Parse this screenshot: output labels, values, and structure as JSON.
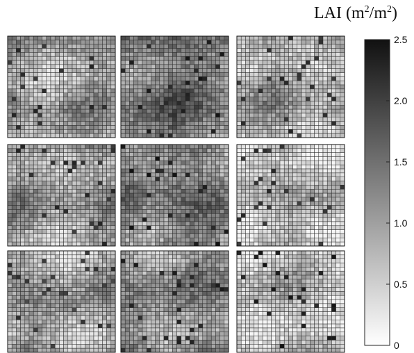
{
  "chart_data": {
    "type": "heatmap",
    "title": {
      "prefix": "LAI (m",
      "sup1": "2",
      "middle": "/m",
      "sup2": "2",
      "suffix": ")"
    },
    "colorbar": {
      "min": 0,
      "max": 2.5,
      "ticks": [
        "2.5",
        "2.0",
        "1.5",
        "1.0",
        "0.5",
        "0"
      ],
      "tick_values": [
        2.5,
        2.0,
        1.5,
        1.0,
        0.5,
        0
      ],
      "color_low": "#ffffff",
      "color_high": "#111111"
    },
    "panel_layout": {
      "rows": 3,
      "cols": 3
    },
    "grid_cells_per_side": 25,
    "panels": [
      {
        "name": "panel-1",
        "mean_lai": 0.85,
        "range": [
          0.2,
          2.3
        ]
      },
      {
        "name": "panel-2",
        "mean_lai": 1.35,
        "range": [
          0.3,
          2.5
        ]
      },
      {
        "name": "panel-3",
        "mean_lai": 0.75,
        "range": [
          0.2,
          2.3
        ]
      },
      {
        "name": "panel-4",
        "mean_lai": 0.9,
        "range": [
          0.2,
          2.3
        ]
      },
      {
        "name": "panel-5",
        "mean_lai": 1.25,
        "range": [
          0.3,
          2.5
        ]
      },
      {
        "name": "panel-6",
        "mean_lai": 0.6,
        "range": [
          0.1,
          2.3
        ]
      },
      {
        "name": "panel-7",
        "mean_lai": 0.85,
        "range": [
          0.2,
          2.2
        ]
      },
      {
        "name": "panel-8",
        "mean_lai": 1.05,
        "range": [
          0.3,
          2.4
        ]
      },
      {
        "name": "panel-9",
        "mean_lai": 0.55,
        "range": [
          0.1,
          2.5
        ]
      }
    ]
  }
}
